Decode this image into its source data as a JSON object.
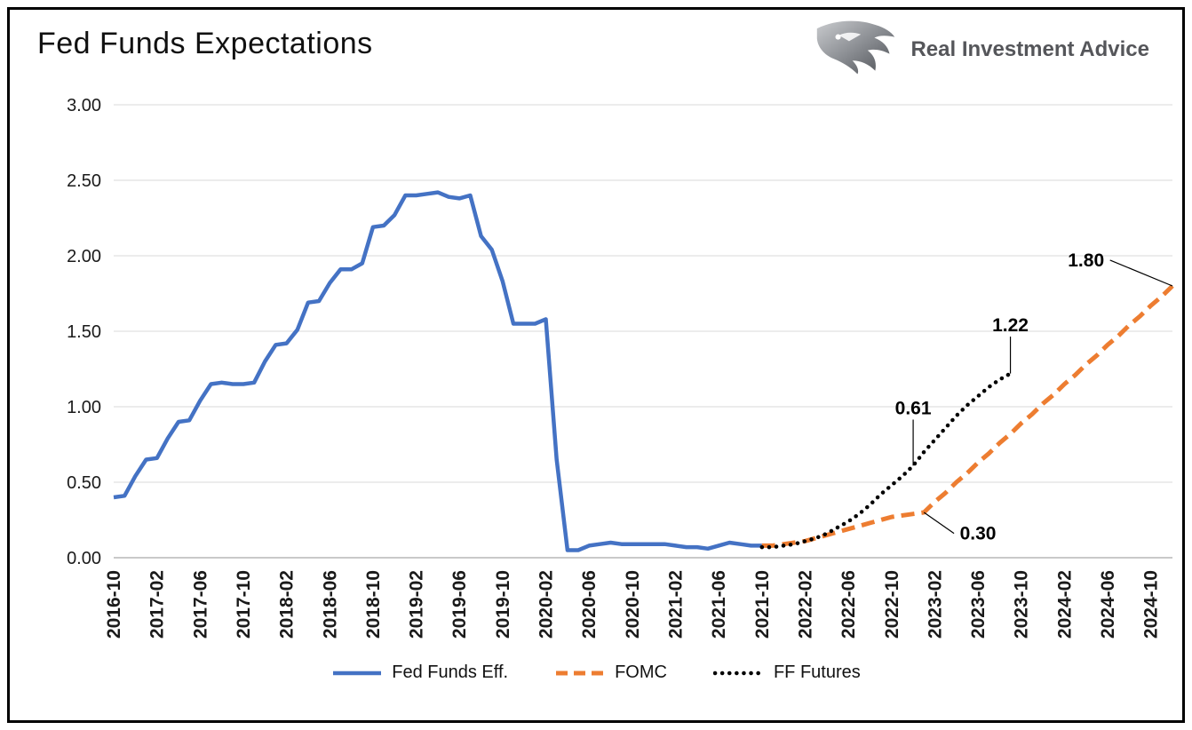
{
  "header": {
    "title": "Fed Funds Expectations"
  },
  "brand": {
    "name": "Real Investment Advice",
    "icon": "eagle-icon"
  },
  "chart_data": {
    "type": "line",
    "title": "Fed Funds Expectations",
    "ylim": [
      0,
      3
    ],
    "ytick_step": 0.5,
    "y_tick_labels": [
      "0.00",
      "0.50",
      "1.00",
      "1.50",
      "2.00",
      "2.50",
      "3.00"
    ],
    "x_tick_labels": [
      "2016-10",
      "2017-02",
      "2017-06",
      "2017-10",
      "2018-02",
      "2018-06",
      "2018-10",
      "2019-02",
      "2019-06",
      "2019-10",
      "2020-02",
      "2020-06",
      "2020-10",
      "2021-02",
      "2021-06",
      "2021-10",
      "2022-02",
      "2022-06",
      "2022-10",
      "2023-02",
      "2023-06",
      "2023-10",
      "2024-02",
      "2024-06",
      "2024-10"
    ],
    "x_start": "2016-10",
    "x_end": "2024-12",
    "grid": "horizontal",
    "legend_position": "bottom",
    "series": [
      {
        "name": "Fed Funds Eff.",
        "color": "#4472C4",
        "style": "solid",
        "start": "2016-10",
        "values": [
          0.4,
          0.41,
          0.54,
          0.65,
          0.66,
          0.79,
          0.9,
          0.91,
          1.04,
          1.15,
          1.16,
          1.15,
          1.15,
          1.16,
          1.3,
          1.41,
          1.42,
          1.51,
          1.69,
          1.7,
          1.82,
          1.91,
          1.91,
          1.95,
          2.19,
          2.2,
          2.27,
          2.4,
          2.4,
          2.41,
          2.42,
          2.39,
          2.38,
          2.4,
          2.13,
          2.04,
          1.83,
          1.55,
          1.55,
          1.55,
          1.58,
          0.65,
          0.05,
          0.05,
          0.08,
          0.09,
          0.1,
          0.09,
          0.09,
          0.09,
          0.09,
          0.09,
          0.08,
          0.07,
          0.07,
          0.06,
          0.08,
          0.1,
          0.09,
          0.08,
          0.08
        ]
      },
      {
        "name": "FOMC",
        "color": "#ED7D31",
        "style": "dashed",
        "start": "2021-10",
        "values": [
          0.08,
          0.08,
          0.09,
          0.1,
          0.11,
          0.13,
          0.15,
          0.17,
          0.19,
          0.21,
          0.23,
          0.25,
          0.27,
          0.28,
          0.29,
          0.3,
          0.37,
          0.43,
          0.5,
          0.56,
          0.63,
          0.69,
          0.76,
          0.82,
          0.89,
          0.95,
          1.02,
          1.08,
          1.15,
          1.21,
          1.28,
          1.34,
          1.41,
          1.47,
          1.54,
          1.6,
          1.67,
          1.73,
          1.8
        ]
      },
      {
        "name": "FF Futures",
        "color": "#000000",
        "style": "dotted",
        "start": "2021-10",
        "values": [
          0.07,
          0.07,
          0.08,
          0.09,
          0.11,
          0.13,
          0.16,
          0.2,
          0.24,
          0.29,
          0.35,
          0.42,
          0.48,
          0.54,
          0.61,
          0.7,
          0.78,
          0.86,
          0.94,
          1.01,
          1.07,
          1.13,
          1.18,
          1.22
        ]
      }
    ],
    "annotations": [
      {
        "text": "1.80",
        "point_x": "2024-12",
        "point_value": 1.8,
        "label_x": "2024-04",
        "label_value": 1.93,
        "attach": "right"
      },
      {
        "text": "1.22",
        "point_x": "2023-09",
        "point_value": 1.22,
        "label_x": "2023-09",
        "label_value": 1.5,
        "attach": "below"
      },
      {
        "text": "0.61",
        "point_x": "2022-12",
        "point_value": 0.61,
        "label_x": "2022-12",
        "label_value": 0.95,
        "attach": "below"
      },
      {
        "text": "0.30",
        "point_x": "2023-01",
        "point_value": 0.3,
        "label_x": "2023-06",
        "label_value": 0.12,
        "attach": "left"
      }
    ]
  }
}
